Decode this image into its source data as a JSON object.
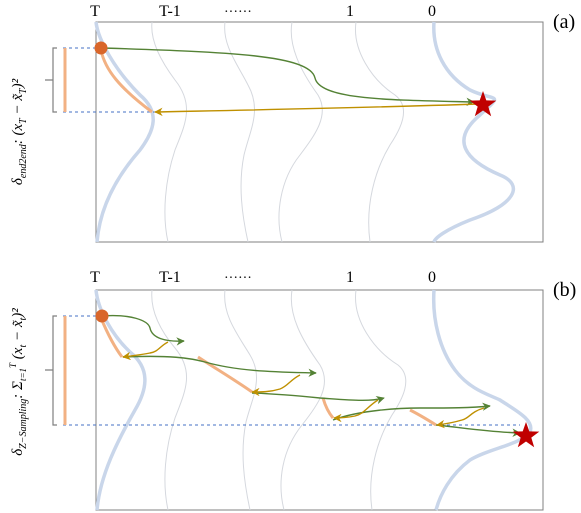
{
  "panels": [
    {
      "tag": "(a)",
      "step_labels": [
        "T",
        "T-1",
        "······",
        "1",
        "0"
      ],
      "metric_label": "δ",
      "metric_subscript": "end2end",
      "metric_expr_parts": [
        ": (x",
        "T",
        " − x̃",
        "T",
        ")²"
      ]
    },
    {
      "tag": "(b)",
      "step_labels": [
        "T",
        "T-1",
        "······",
        "1",
        "0"
      ],
      "metric_label": "δ",
      "metric_subscript": "Z−Sampling",
      "metric_expr_parts": [
        ": Σ",
        "t=1",
        "T",
        " (x",
        "t",
        " − x̃",
        "t",
        ")²"
      ]
    }
  ],
  "colors": {
    "frame": "#808080",
    "density_light": "#c9d6ea",
    "density_faint": "#d5d8de",
    "path_orange": "#f2b183",
    "arrow_green": "#548235",
    "arrow_gold": "#bf9000",
    "dot_orange": "#d9662a",
    "star_red": "#c00000",
    "dashed_blue": "#4472c4",
    "bracket_gray": "#7f7f7f"
  },
  "icons": [
    "start-dot-icon",
    "target-star-icon",
    "arrowhead-icon"
  ]
}
